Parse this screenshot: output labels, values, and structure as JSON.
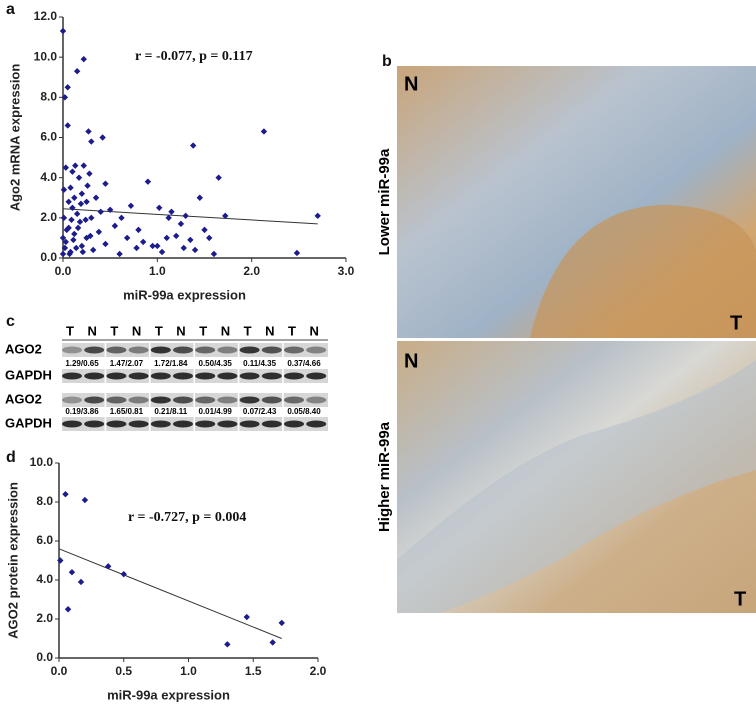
{
  "panels": [
    "a",
    "b",
    "c",
    "d"
  ],
  "chart_data": [
    {
      "type": "scatter",
      "xlabel": "miR-99a expression",
      "ylabel": "Ago2 mRNA expression",
      "annotation": "r = -0.077,  p = 0.117",
      "color": "#1c1c8c",
      "xlim": [
        0,
        3
      ],
      "xticks": [
        {
          "value": 0,
          "label": "0.0"
        },
        {
          "value": 1,
          "label": "1.0"
        },
        {
          "value": 2,
          "label": "2.0"
        },
        {
          "value": 3,
          "label": "3.0"
        }
      ],
      "ylim": [
        0,
        12
      ],
      "yticks": [
        {
          "value": 0,
          "label": "0.0"
        },
        {
          "value": 2,
          "label": "2.0"
        },
        {
          "value": 4,
          "label": "4.0"
        },
        {
          "value": 6,
          "label": "6.0"
        },
        {
          "value": 8,
          "label": "8.0"
        },
        {
          "value": 10,
          "label": "10.0"
        },
        {
          "value": 12,
          "label": "12.0"
        }
      ],
      "x": [
        0.0,
        0.0,
        0.01,
        0.02,
        0.03,
        0.03,
        0.05,
        0.05,
        0.06,
        0.08,
        0.08,
        0.1,
        0.1,
        0.12,
        0.12,
        0.14,
        0.15,
        0.15,
        0.17,
        0.18,
        0.2,
        0.2,
        0.22,
        0.22,
        0.25,
        0.25,
        0.27,
        0.28,
        0.3,
        0.3,
        0.32,
        0.35,
        0.38,
        0.4,
        0.42,
        0.45,
        0.45,
        0.5,
        0.55,
        0.6,
        0.62,
        0.68,
        0.72,
        0.78,
        0.8,
        0.85,
        0.9,
        0.95,
        1.0,
        1.02,
        1.05,
        1.1,
        1.12,
        1.15,
        1.2,
        1.25,
        1.28,
        1.3,
        1.35,
        1.38,
        1.4,
        1.45,
        1.5,
        1.55,
        1.6,
        1.65,
        1.72,
        2.13,
        2.48,
        2.7,
        0.0,
        0.01,
        0.02,
        0.04,
        0.06,
        0.07,
        0.09,
        0.11,
        0.13,
        0.16,
        0.19,
        0.21,
        0.24,
        0.26,
        0.29
      ],
      "values": [
        11.3,
        0.2,
        2.0,
        8.0,
        4.5,
        0.8,
        8.5,
        6.6,
        1.5,
        3.5,
        0.3,
        2.5,
        4.3,
        1.2,
        3.0,
        0.5,
        2.2,
        9.3,
        4.0,
        1.8,
        3.2,
        0.6,
        4.6,
        9.9,
        2.8,
        1.0,
        6.3,
        4.2,
        5.8,
        2.0,
        0.4,
        3.0,
        1.3,
        2.3,
        6.0,
        3.7,
        0.7,
        2.4,
        1.6,
        0.2,
        2.0,
        1.0,
        2.6,
        0.5,
        1.4,
        0.8,
        3.8,
        0.6,
        0.6,
        2.5,
        0.3,
        1.0,
        2.0,
        2.3,
        1.1,
        1.7,
        0.5,
        2.1,
        0.9,
        5.6,
        0.4,
        3.0,
        1.4,
        1.0,
        0.2,
        4.0,
        2.1,
        6.3,
        0.25,
        2.1,
        1.0,
        3.4,
        0.5,
        1.4,
        2.8,
        0.2,
        1.9,
        0.9,
        4.6,
        1.5,
        2.7,
        0.3,
        1.9,
        3.6,
        1.1
      ],
      "fit": {
        "x": [
          0,
          2.7
        ],
        "y": [
          2.45,
          1.7
        ]
      }
    },
    {
      "type": "scatter",
      "xlabel": "miR-99a expression",
      "ylabel": "AGO2 protein expression",
      "annotation": "r = -0.727,  p = 0.004",
      "color": "#1c1c8c",
      "xlim": [
        0,
        2
      ],
      "xticks": [
        {
          "value": 0,
          "label": "0.0"
        },
        {
          "value": 0.5,
          "label": "0.5"
        },
        {
          "value": 1,
          "label": "1.0"
        },
        {
          "value": 1.5,
          "label": "1.5"
        },
        {
          "value": 2,
          "label": "2.0"
        }
      ],
      "ylim": [
        0,
        10
      ],
      "yticks": [
        {
          "value": 0,
          "label": "0.0"
        },
        {
          "value": 2,
          "label": "2.0"
        },
        {
          "value": 4,
          "label": "4.0"
        },
        {
          "value": 6,
          "label": "6.0"
        },
        {
          "value": 8,
          "label": "8.0"
        },
        {
          "value": 10,
          "label": "10.0"
        }
      ],
      "x": [
        0.01,
        0.05,
        0.07,
        0.1,
        0.17,
        0.2,
        0.38,
        0.5,
        1.3,
        1.45,
        1.65,
        1.72
      ],
      "values": [
        5.0,
        8.4,
        2.5,
        4.4,
        3.9,
        8.1,
        4.7,
        4.3,
        0.7,
        2.1,
        0.8,
        1.8
      ],
      "fit": {
        "x": [
          0,
          1.72
        ],
        "y": [
          5.6,
          1.0
        ]
      }
    }
  ],
  "blot": {
    "lanes": [
      "T",
      "N",
      "T",
      "N",
      "T",
      "N",
      "T",
      "N",
      "T",
      "N",
      "T",
      "N"
    ],
    "rows": [
      "AGO2",
      "GAPDH",
      "AGO2",
      "GAPDH"
    ],
    "ratios_top": [
      "1.29/0.65",
      "1.47/2.07",
      "1.72/1.84",
      "0.50/4.35",
      "0.11/4.35",
      "0.37/4.66"
    ],
    "ratios_bottom": [
      "0.19/3.86",
      "1.65/0.81",
      "0.21/8.11",
      "0.01/4.99",
      "0.07/2.43",
      "0.05/8.40"
    ]
  },
  "histology": {
    "top_label": "Lower miR-99a",
    "bottom_label": "Higher miR-99a",
    "top_marks": [
      "N",
      "T"
    ],
    "bottom_marks": [
      "N",
      "T"
    ]
  }
}
